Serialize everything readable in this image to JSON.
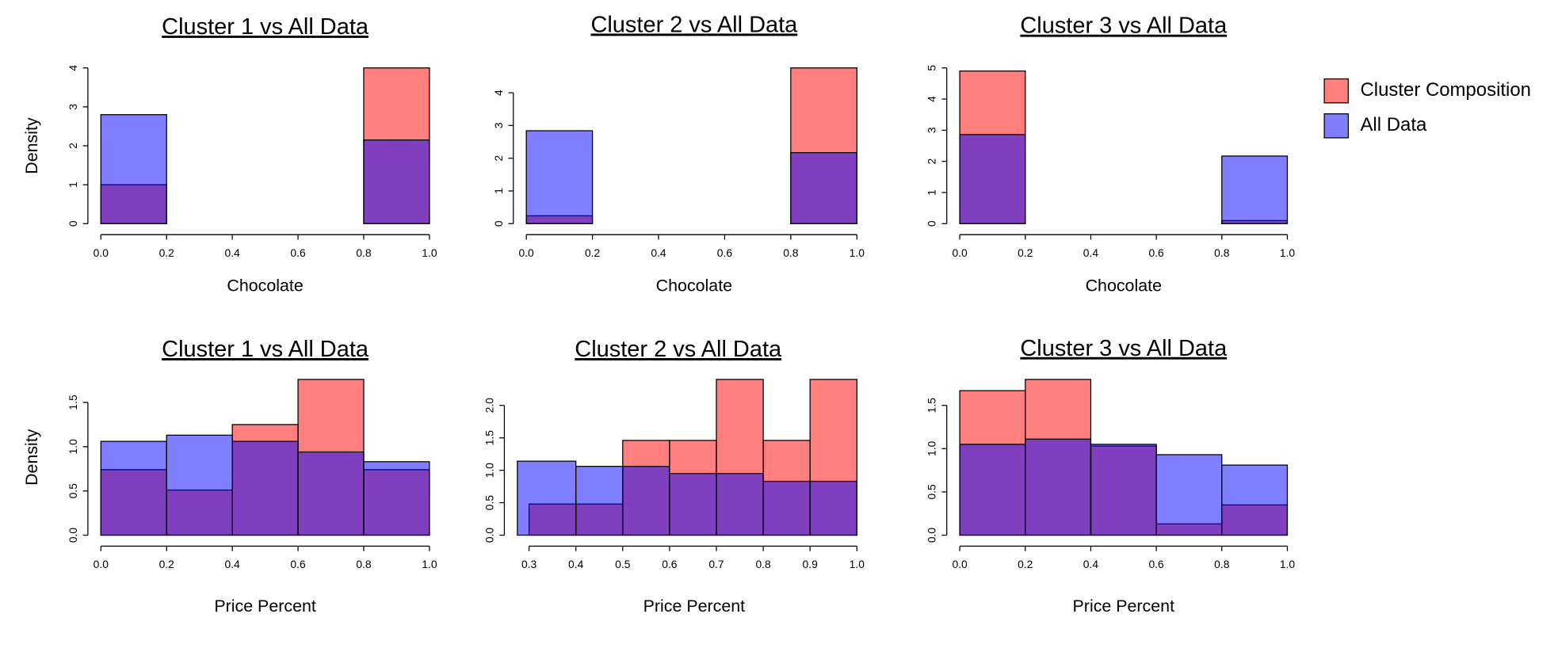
{
  "chart_data": [
    {
      "type": "histogram",
      "title": "Cluster 1 vs All Data",
      "xlabel": "Chocolate",
      "ylabel": "Density",
      "bins": [
        0,
        0.2,
        0.4,
        0.6,
        0.8,
        1.0
      ],
      "xlim": [
        0,
        1.0
      ],
      "xticks": [
        {
          "value": 0,
          "label": "0.0"
        },
        0.2,
        0.4,
        0.6,
        0.8,
        {
          "value": 1,
          "label": "1.0"
        }
      ],
      "ylim": [
        0,
        4
      ],
      "yticks": [
        0,
        1,
        2,
        3,
        4
      ],
      "series": [
        {
          "color": "rgba(255,0,0,0.5)",
          "values": [
            1.0,
            0,
            0,
            0,
            4.0
          ]
        },
        {
          "color": "rgba(0,0,255,0.5)",
          "values": [
            2.8,
            0,
            0,
            0,
            2.15
          ]
        }
      ]
    },
    {
      "type": "histogram",
      "title": "Cluster 2 vs All Data",
      "xlabel": "Chocolate",
      "bins": [
        0,
        0.2,
        0.4,
        0.6,
        0.8,
        1.0
      ],
      "xlim": [
        0,
        1.0
      ],
      "xticks": [
        {
          "value": 0,
          "label": "0.0"
        },
        0.2,
        0.4,
        0.6,
        0.8,
        {
          "value": 1,
          "label": "1.0"
        }
      ],
      "ylim": [
        0,
        4.76
      ],
      "yticks": [
        0,
        1,
        2,
        3,
        4
      ],
      "series": [
        {
          "color": "rgba(255,0,0,0.5)",
          "values": [
            0.24,
            0,
            0,
            0,
            4.76
          ]
        },
        {
          "color": "rgba(0,0,255,0.5)",
          "values": [
            2.84,
            0,
            0,
            0,
            2.17
          ]
        }
      ]
    },
    {
      "type": "histogram",
      "title": "Cluster 3 vs All Data",
      "xlabel": "Chocolate",
      "bins": [
        0,
        0.2,
        0.4,
        0.6,
        0.8,
        1.0
      ],
      "xlim": [
        0,
        1.0
      ],
      "xticks": [
        {
          "value": 0,
          "label": "0.0"
        },
        0.2,
        0.4,
        0.6,
        0.8,
        {
          "value": 1,
          "label": "1.0"
        }
      ],
      "ylim": [
        0,
        5
      ],
      "yticks": [
        0,
        1,
        2,
        3,
        4,
        5
      ],
      "legend": "right",
      "series": [
        {
          "name": "Cluster Composition",
          "color": "rgba(255,0,0,0.5)",
          "values": [
            4.9,
            0,
            0,
            0,
            0.1
          ]
        },
        {
          "name": "All Data",
          "color": "rgba(0,0,255,0.5)",
          "values": [
            2.86,
            0,
            0,
            0,
            2.17
          ]
        }
      ]
    },
    {
      "type": "histogram",
      "title": "Cluster 1 vs All Data",
      "xlabel": "Price Percent",
      "ylabel": "Density",
      "bins": [
        0,
        0.2,
        0.4,
        0.6,
        0.8,
        1.0
      ],
      "xlim": [
        0,
        1.0
      ],
      "xticks": [
        {
          "value": 0,
          "label": "0.0"
        },
        0.2,
        0.4,
        0.6,
        0.8,
        {
          "value": 1,
          "label": "1.0"
        }
      ],
      "ylim": [
        0,
        1.76
      ],
      "yticks": [
        {
          "value": 0,
          "label": "0.0"
        },
        0.5,
        {
          "value": 1,
          "label": "1.0"
        },
        1.5
      ],
      "series": [
        {
          "color": "rgba(255,0,0,0.5)",
          "values": [
            0.74,
            0.51,
            1.25,
            1.76,
            0.74
          ]
        },
        {
          "color": "rgba(0,0,255,0.5)",
          "values": [
            1.06,
            1.13,
            1.06,
            0.94,
            0.83
          ]
        }
      ]
    },
    {
      "type": "histogram",
      "title": "Cluster 2 vs All Data",
      "xlabel": "Price Percent",
      "xlim": [
        0.275,
        1.0
      ],
      "xticks": [
        0.3,
        0.4,
        0.5,
        0.6,
        0.7,
        0.8,
        0.9,
        {
          "value": 1,
          "label": "1.0"
        }
      ],
      "ylim": [
        0,
        2.4
      ],
      "yticks": [
        {
          "value": 0,
          "label": "0.0"
        },
        0.5,
        {
          "value": 1,
          "label": "1.0"
        },
        1.5,
        {
          "value": 2,
          "label": "2.0"
        }
      ],
      "series": [
        {
          "color": "rgba(255,0,0,0.5)",
          "bins": [
            0.3,
            0.4,
            0.5,
            0.6,
            0.7,
            0.8,
            0.9,
            1.0
          ],
          "values": [
            0.48,
            0.48,
            1.46,
            1.46,
            2.4,
            1.46,
            2.4
          ]
        },
        {
          "color": "rgba(0,0,255,0.5)",
          "bins": [
            0.275,
            0.4,
            0.5,
            0.6,
            0.7,
            0.8,
            0.9,
            1.0
          ],
          "values": [
            1.14,
            1.06,
            1.06,
            0.95,
            0.95,
            0.83,
            0.83
          ]
        }
      ]
    },
    {
      "type": "histogram",
      "title": "Cluster 3 vs All Data",
      "xlabel": "Price Percent",
      "bins": [
        0,
        0.2,
        0.4,
        0.6,
        0.8,
        1.0
      ],
      "xlim": [
        0,
        1.0
      ],
      "xticks": [
        {
          "value": 0,
          "label": "0.0"
        },
        0.2,
        0.4,
        0.6,
        0.8,
        {
          "value": 1,
          "label": "1.0"
        }
      ],
      "ylim": [
        0,
        1.8
      ],
      "yticks": [
        {
          "value": 0,
          "label": "0.0"
        },
        0.5,
        {
          "value": 1,
          "label": "1.0"
        },
        1.5
      ],
      "series": [
        {
          "color": "rgba(255,0,0,0.5)",
          "values": [
            1.67,
            1.8,
            1.03,
            0.13,
            0.35
          ]
        },
        {
          "color": "rgba(0,0,255,0.5)",
          "values": [
            1.05,
            1.11,
            1.05,
            0.93,
            0.81
          ]
        }
      ]
    }
  ]
}
